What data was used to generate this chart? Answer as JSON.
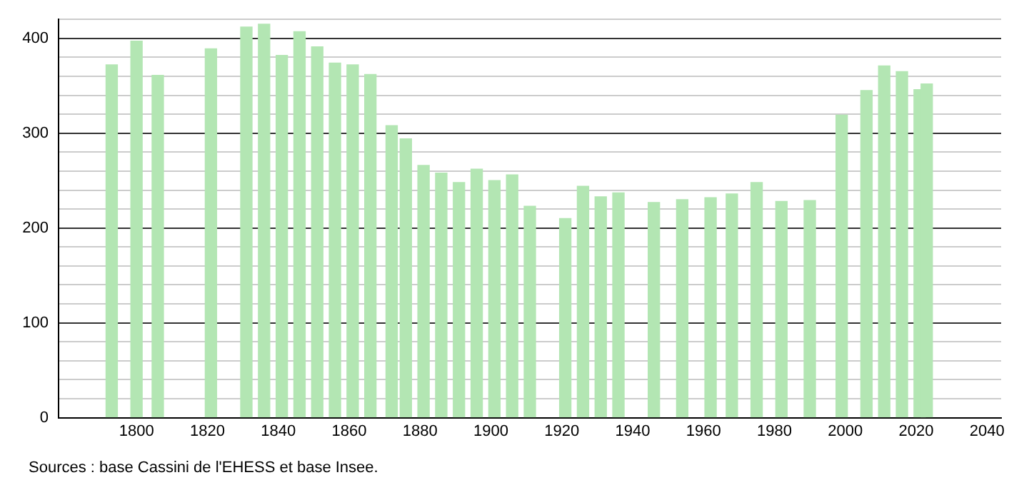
{
  "chart_data": {
    "type": "bar",
    "x": [
      1793,
      1800,
      1806,
      1821,
      1831,
      1836,
      1841,
      1846,
      1851,
      1856,
      1861,
      1866,
      1872,
      1876,
      1881,
      1886,
      1891,
      1896,
      1901,
      1906,
      1911,
      1921,
      1926,
      1931,
      1936,
      1946,
      1954,
      1962,
      1968,
      1975,
      1982,
      1990,
      1999,
      2006,
      2011,
      2016,
      2021,
      2023
    ],
    "values": [
      372,
      397,
      361,
      389,
      412,
      415,
      382,
      407,
      391,
      374,
      372,
      362,
      308,
      294,
      266,
      258,
      248,
      262,
      250,
      256,
      223,
      210,
      244,
      233,
      237,
      227,
      230,
      232,
      236,
      248,
      228,
      229,
      319,
      345,
      371,
      365,
      346,
      352
    ],
    "color": "#b3e6b3",
    "xlim": [
      1778,
      2044
    ],
    "xticks": [
      1800,
      1820,
      1840,
      1860,
      1880,
      1900,
      1920,
      1940,
      1960,
      1980,
      2000,
      2020,
      2040
    ],
    "ylim": [
      0,
      420
    ],
    "yticks": [
      0,
      {
        "value": 20,
        "label": null
      },
      {
        "value": 40,
        "label": null
      },
      {
        "value": 60,
        "label": null
      },
      {
        "value": 80,
        "label": null
      },
      100,
      {
        "value": 120,
        "label": null
      },
      {
        "value": 140,
        "label": null
      },
      {
        "value": 160,
        "label": null
      },
      {
        "value": 180,
        "label": null
      },
      200,
      {
        "value": 220,
        "label": null
      },
      {
        "value": 240,
        "label": null
      },
      {
        "value": 260,
        "label": null
      },
      {
        "value": 280,
        "label": null
      },
      300,
      {
        "value": 320,
        "label": null
      },
      {
        "value": 340,
        "label": null
      },
      {
        "value": 360,
        "label": null
      },
      {
        "value": 380,
        "label": null
      },
      400,
      {
        "value": 420,
        "label": null
      }
    ],
    "grid": "y",
    "annotations": [
      "Sources : base Cassini de l'EHESS et base Insee."
    ]
  }
}
